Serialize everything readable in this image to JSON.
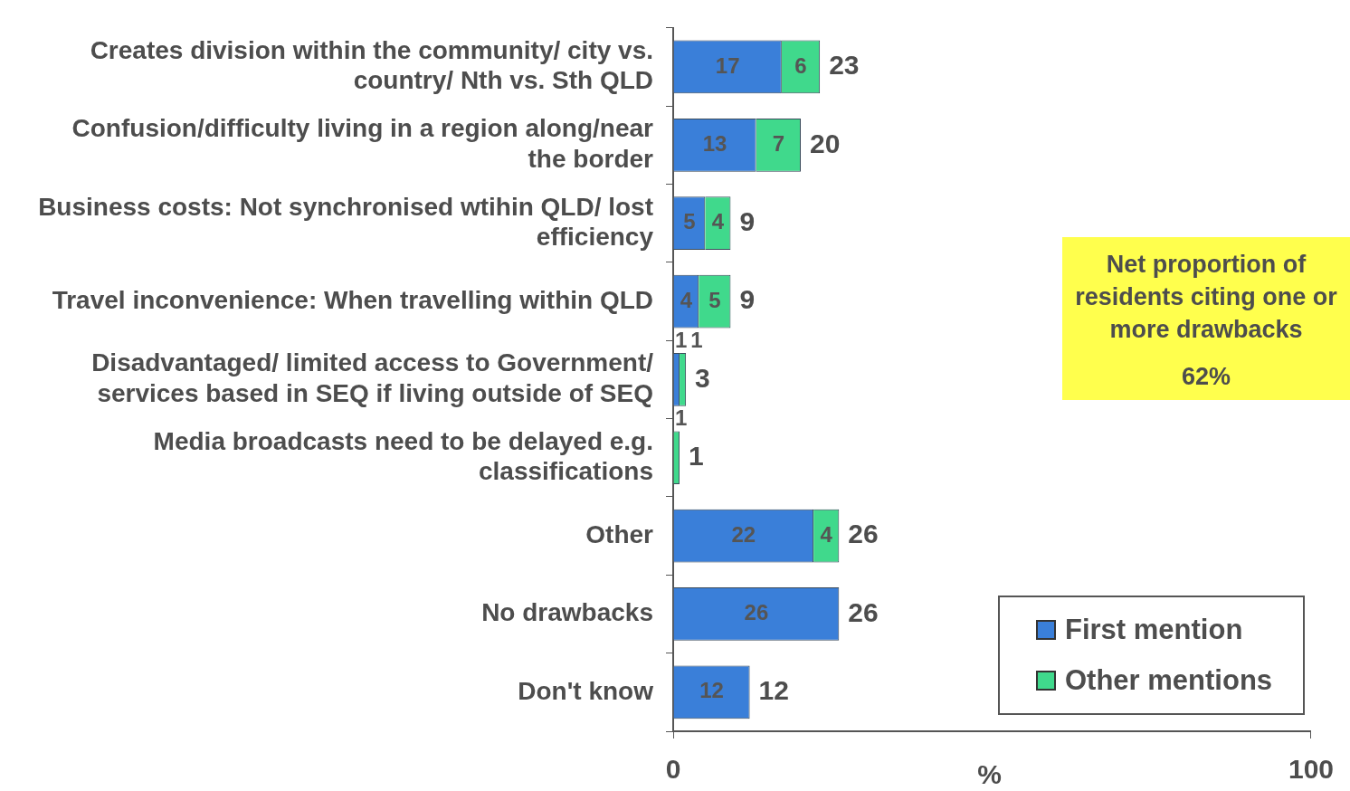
{
  "chart_data": {
    "type": "bar",
    "orientation": "horizontal",
    "stacked": true,
    "xlabel": "%",
    "categories": [
      "Creates division within the community/ city vs. country/ Nth vs. Sth QLD",
      "Confusion/difficulty living in a region along/near the border",
      "Business costs: Not synchronised wtihin QLD/ lost efficiency",
      "Travel inconvenience: When travelling within QLD",
      "Disadvantaged/ limited access to Government/ services based in SEQ if living outside of SEQ",
      "Media broadcasts need to be delayed e.g. classifications",
      "Other",
      "No drawbacks",
      "Don't know"
    ],
    "series": [
      {
        "name": "First mention",
        "color": "#3a7fd9",
        "values": [
          17,
          13,
          5,
          4,
          1,
          null,
          22,
          26,
          12
        ]
      },
      {
        "name": "Other mentions",
        "color": "#40d98c",
        "values": [
          6,
          7,
          4,
          5,
          1,
          1,
          4,
          null,
          null
        ]
      }
    ],
    "totals": [
      "23",
      "20",
      "9",
      "9",
      "3",
      "1",
      "26",
      "26",
      "12"
    ],
    "data_labels": true,
    "xlim": [
      0,
      100
    ],
    "xticks": [
      0,
      100
    ],
    "grid": false,
    "legend": "bottom right",
    "annotations": [
      "Net proportion of residents citing one or more drawbacks",
      "62%"
    ]
  }
}
